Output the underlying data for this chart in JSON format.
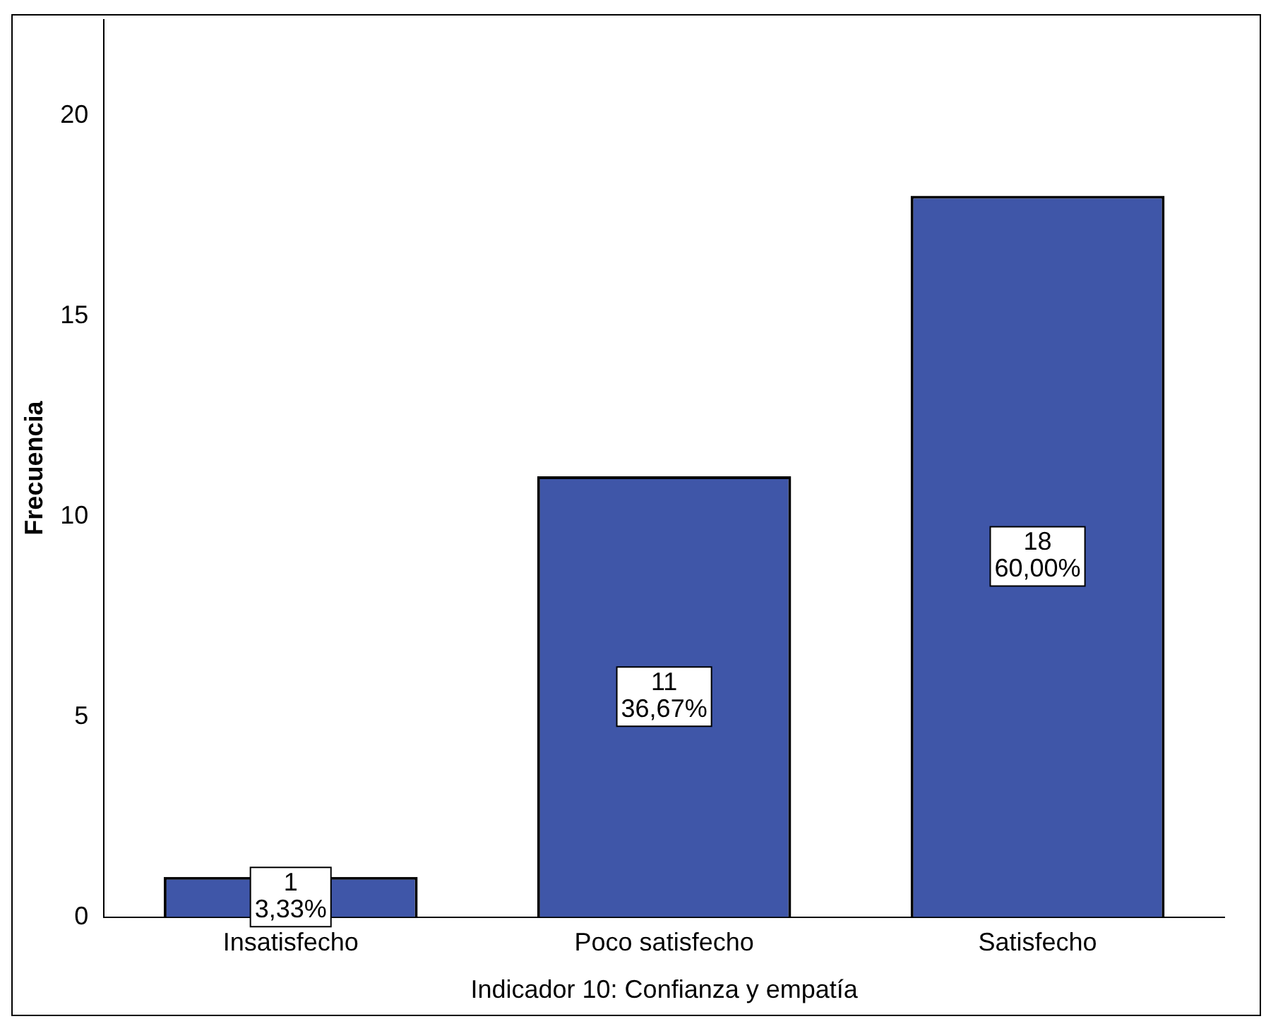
{
  "chart_data": {
    "type": "bar",
    "xlabel": "Indicador 10: Confianza y empatía",
    "ylabel": "Frecuencia",
    "categories": [
      "Insatisfecho",
      "Poco satisfecho",
      "Satisfecho"
    ],
    "values": [
      1,
      11,
      18
    ],
    "color": "#3f56a8",
    "value_labels": [
      "1\n3,33%",
      "11\n36,67%",
      "18\n60,00%"
    ],
    "ylim": [
      0,
      22.4
    ],
    "yticks": [
      0,
      5,
      10,
      15,
      20
    ],
    "grid": false,
    "legend": false
  }
}
